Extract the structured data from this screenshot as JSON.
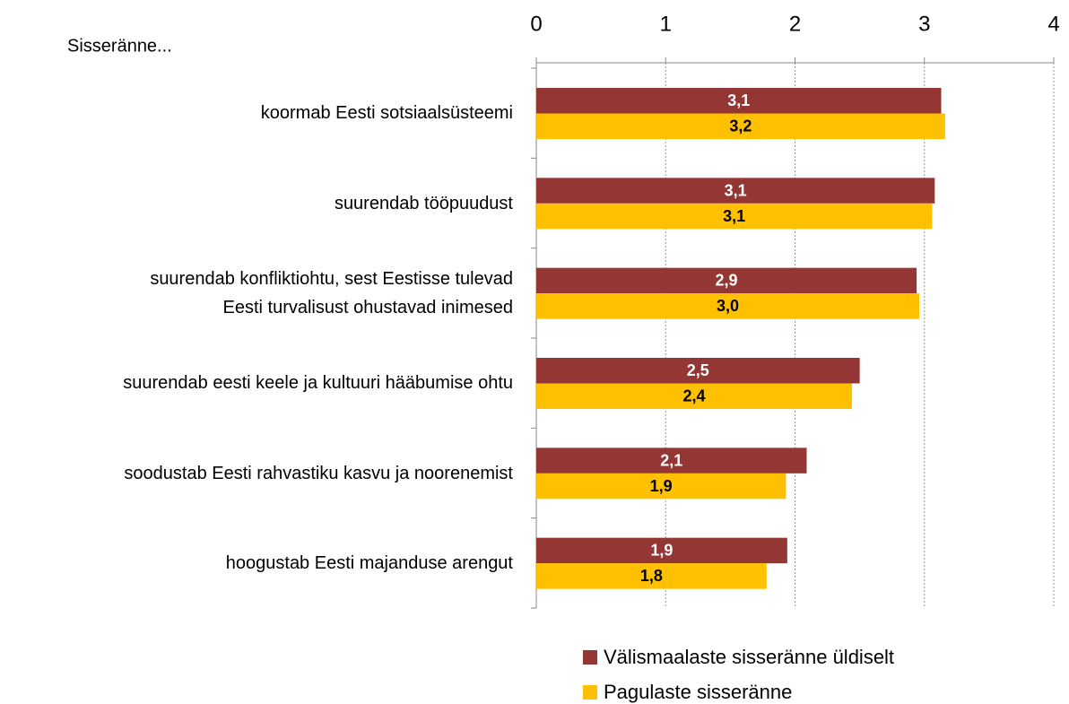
{
  "chart_data": {
    "type": "bar",
    "orientation": "horizontal",
    "subtitle": "Sisseränne...",
    "categories": [
      "koormab Eesti sotsiaalsüsteemi",
      "suurendab tööpuudust",
      "suurendab konfliktiohtu, sest Eestisse tulevad\nEesti turvalisust ohustavad inimesed",
      "suurendab eesti keele ja kultuuri hääbumise ohtu",
      "soodustab Eesti rahvastiku kasvu ja noorenemist",
      "hoogustab Eesti majanduse arengut"
    ],
    "series": [
      {
        "name": "Välismaalaste sisseränne üldiselt",
        "color": "#943634",
        "label_color": "#ffffff",
        "values": [
          3.13,
          3.08,
          2.94,
          2.5,
          2.09,
          1.94
        ],
        "value_labels": [
          "3,1",
          "3,1",
          "2,9",
          "2,5",
          "2,1",
          "1,9"
        ]
      },
      {
        "name": "Pagulaste sisseränne",
        "color": "#ffc000",
        "label_color": "#000000",
        "values": [
          3.16,
          3.06,
          2.96,
          2.44,
          1.93,
          1.78
        ],
        "value_labels": [
          "3,2",
          "3,1",
          "3,0",
          "2,4",
          "1,9",
          "1,8"
        ]
      }
    ],
    "xlim": [
      0,
      4
    ],
    "xticks": [
      0,
      1,
      2,
      3,
      4
    ],
    "grid": true,
    "legend": "bottom"
  }
}
